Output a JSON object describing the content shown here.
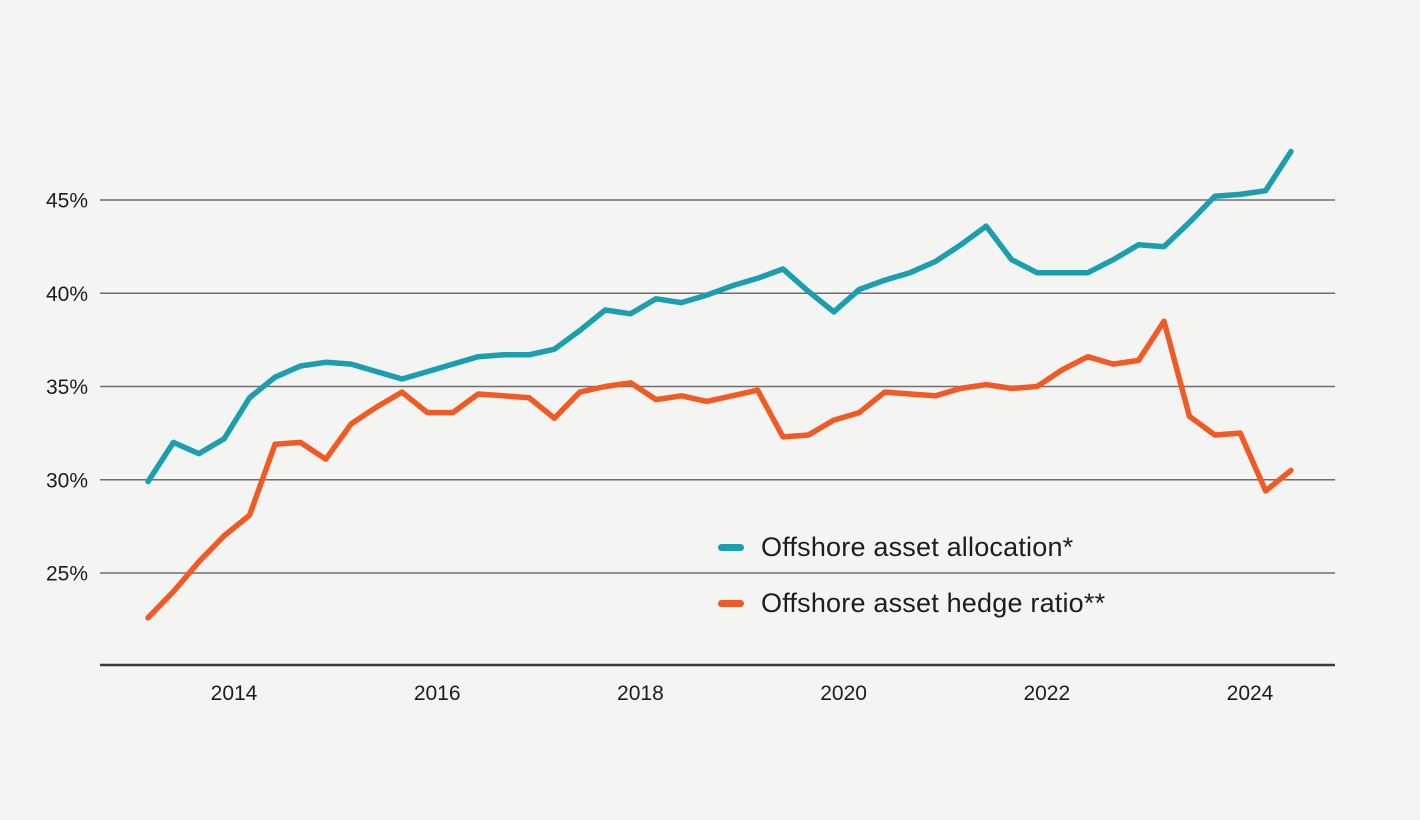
{
  "chart_data": {
    "type": "line",
    "title": "",
    "x_unit": "quarterly",
    "x_period_start": "2013 Q1",
    "x_period_end": "2024 Q2",
    "x_tick_years": [
      2014,
      2016,
      2018,
      2020,
      2022,
      2024
    ],
    "y_tick_values": [
      45,
      40,
      35,
      30,
      25
    ],
    "y_tick_labels": [
      "45%",
      "40%",
      "35%",
      "30%",
      "25%"
    ],
    "ylim": [
      21.5,
      49
    ],
    "grid": "horizontal-only",
    "legend_position": "inside-bottom-right",
    "series": [
      {
        "name": "Offshore asset allocation*",
        "color": "#1B9FAE",
        "values": [
          29.9,
          32.0,
          31.4,
          32.2,
          34.4,
          35.5,
          36.1,
          36.3,
          36.2,
          35.8,
          35.4,
          35.8,
          36.2,
          36.6,
          36.7,
          36.7,
          37.0,
          38.0,
          39.1,
          38.9,
          39.7,
          39.5,
          39.9,
          40.4,
          40.8,
          41.3,
          40.1,
          39.0,
          40.2,
          40.7,
          41.1,
          41.7,
          42.6,
          43.6,
          41.8,
          41.1,
          41.1,
          41.1,
          41.8,
          42.6,
          42.5,
          43.8,
          45.2,
          45.3,
          45.5,
          47.6
        ]
      },
      {
        "name": "Offshore asset hedge ratio**",
        "color": "#F15A24",
        "values": [
          22.6,
          24.0,
          25.6,
          27.0,
          28.1,
          31.9,
          32.0,
          31.1,
          33.0,
          33.9,
          34.7,
          33.6,
          33.6,
          34.6,
          34.5,
          34.4,
          33.3,
          34.7,
          35.0,
          35.2,
          34.3,
          34.5,
          34.2,
          34.5,
          34.8,
          32.3,
          32.4,
          33.2,
          33.6,
          34.7,
          34.6,
          34.5,
          34.9,
          35.1,
          34.9,
          35.0,
          35.9,
          36.6,
          36.2,
          36.4,
          38.5,
          33.4,
          32.4,
          32.5,
          29.4,
          30.5
        ]
      }
    ],
    "colors": {
      "background": "#F4F5F3",
      "gridline": "#6E6E6E",
      "axis_line": "#3A3A3A",
      "tick_text": "#1D1D1B",
      "legend_text": "#1D1D1B"
    }
  }
}
